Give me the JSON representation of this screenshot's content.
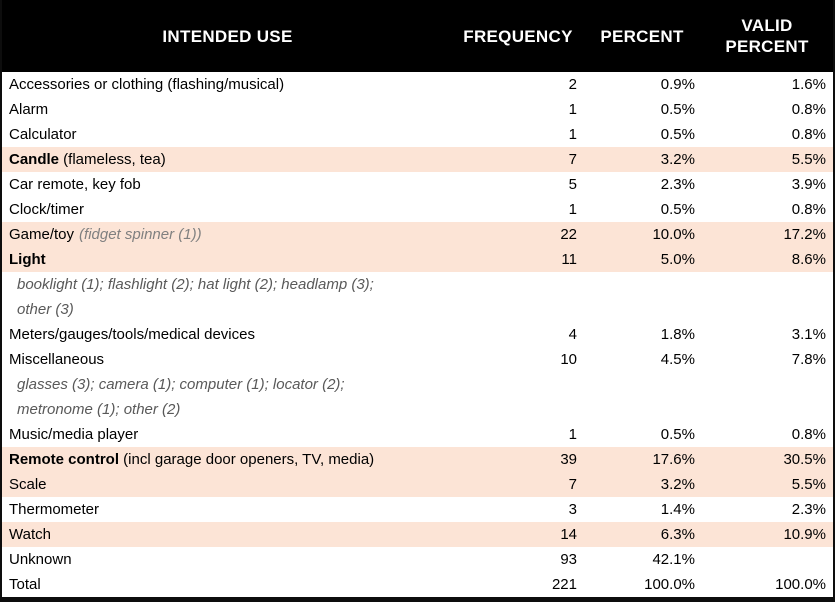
{
  "colors": {
    "header_bg": "#000000",
    "header_text": "#ffffff",
    "highlight_row_bg": "#FCE4D6",
    "note_text": "#808080",
    "sub_row_text": "#595959",
    "border": "#0d0d0d"
  },
  "table": {
    "headers": {
      "intended_use": "INTENDED USE",
      "frequency": "FREQUENCY",
      "percent": "PERCENT",
      "valid_percent": "VALID PERCENT"
    },
    "rows": [
      {
        "label": "Accessories or clothing (flashing/musical)",
        "freq": "2",
        "pct": "0.9%",
        "valid": "1.6%"
      },
      {
        "label": "Alarm",
        "freq": "1",
        "pct": "0.5%",
        "valid": "0.8%"
      },
      {
        "label": "Calculator",
        "freq": "1",
        "pct": "0.5%",
        "valid": "0.8%"
      },
      {
        "label_bold": "Candle",
        "label": " (flameless, tea)",
        "freq": "7",
        "pct": "3.2%",
        "valid": "5.5%",
        "highlight": true
      },
      {
        "label": "Car remote, key fob",
        "freq": "5",
        "pct": "2.3%",
        "valid": "3.9%"
      },
      {
        "label": "Clock/timer",
        "freq": "1",
        "pct": "0.5%",
        "valid": "0.8%"
      },
      {
        "label": "Game/toy",
        "note": "(fidget spinner (1))",
        "freq": "22",
        "pct": "10.0%",
        "valid": "17.2%",
        "highlight": true
      },
      {
        "label_bold": "Light",
        "label": "",
        "freq": "11",
        "pct": "5.0%",
        "valid": "8.6%",
        "highlight": true
      },
      {
        "sub": true,
        "lines": [
          "booklight (1); flashlight (2); hat light (2); headlamp (3);",
          "other (3)"
        ]
      },
      {
        "label": "Meters/gauges/tools/medical devices",
        "freq": "4",
        "pct": "1.8%",
        "valid": "3.1%"
      },
      {
        "label": "Miscellaneous",
        "freq": "10",
        "pct": "4.5%",
        "valid": "7.8%"
      },
      {
        "sub": true,
        "lines": [
          "glasses (3); camera (1); computer (1); locator (2);",
          "metronome (1); other (2)"
        ]
      },
      {
        "label": "Music/media player",
        "freq": "1",
        "pct": "0.5%",
        "valid": "0.8%"
      },
      {
        "label_bold": "Remote control",
        "label": " (incl garage door openers, TV, media)",
        "freq": "39",
        "pct": "17.6%",
        "valid": "30.5%",
        "highlight": true
      },
      {
        "label": "Scale",
        "freq": "7",
        "pct": "3.2%",
        "valid": "5.5%",
        "highlight": true
      },
      {
        "label": "Thermometer",
        "freq": "3",
        "pct": "1.4%",
        "valid": "2.3%"
      },
      {
        "label": "Watch",
        "freq": "14",
        "pct": "6.3%",
        "valid": "10.9%",
        "highlight": true
      },
      {
        "label": "Unknown",
        "freq": "93",
        "pct": "42.1%",
        "valid": ""
      },
      {
        "label": "Total",
        "freq": "221",
        "pct": "100.0%",
        "valid": "100.0%"
      }
    ]
  }
}
